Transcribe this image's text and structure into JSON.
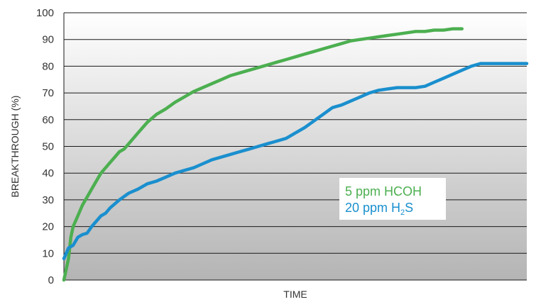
{
  "chart_data": {
    "type": "line",
    "title": "",
    "xlabel": "TIME",
    "ylabel": "BREAKTHROUGH (%)",
    "ylim": [
      0,
      100
    ],
    "xlim": [
      0,
      100
    ],
    "yticks": [
      "0",
      "10",
      "20",
      "30",
      "40",
      "50",
      "60",
      "70",
      "80",
      "90",
      "100"
    ],
    "grid": "horizontal",
    "legend_position": "lower-right",
    "series": [
      {
        "name": "5 ppm HCOH",
        "color": "#4caf50",
        "x": [
          0,
          1,
          1.5,
          2,
          3,
          4,
          5,
          6,
          7,
          8,
          9,
          10,
          11,
          12,
          13,
          14,
          15,
          16,
          17,
          18,
          20,
          22,
          24,
          26,
          28,
          30,
          32,
          34,
          36,
          38,
          40,
          42,
          44,
          46,
          48,
          50,
          52,
          54,
          56,
          58,
          60,
          62,
          64,
          66,
          68,
          70,
          72,
          74,
          76,
          78,
          80,
          82,
          84,
          86
        ],
        "values": [
          0,
          8,
          16,
          20,
          24,
          28,
          31,
          34,
          37,
          40,
          42,
          44,
          46,
          48,
          49,
          51,
          53,
          55,
          57,
          59,
          62,
          64,
          66.5,
          68.5,
          70.5,
          72,
          73.5,
          75,
          76.5,
          77.5,
          78.5,
          79.5,
          80.5,
          81.5,
          82.5,
          83.5,
          84.5,
          85.5,
          86.5,
          87.5,
          88.5,
          89.5,
          90,
          90.5,
          91,
          91.5,
          92,
          92.5,
          93,
          93,
          93.5,
          93.5,
          94,
          94
        ]
      },
      {
        "name": "20 ppm H₂S",
        "color": "#1a8fce",
        "x": [
          0,
          1,
          2,
          3,
          4,
          5,
          6,
          7,
          8,
          9,
          10,
          12,
          14,
          16,
          18,
          20,
          22,
          24,
          26,
          28,
          30,
          32,
          34,
          36,
          38,
          40,
          42,
          44,
          46,
          48,
          50,
          52,
          54,
          56,
          58,
          60,
          62,
          64,
          66,
          68,
          70,
          72,
          74,
          76,
          78,
          80,
          82,
          84,
          86,
          88,
          90,
          92,
          94,
          96,
          98,
          100
        ],
        "values": [
          8,
          12,
          13,
          16,
          17,
          17.5,
          20,
          22,
          24,
          25,
          27,
          30,
          32.5,
          34,
          36,
          37,
          38.5,
          40,
          41,
          42,
          43.5,
          45,
          46,
          47,
          48,
          49,
          50,
          51,
          52,
          53,
          55,
          57,
          59.5,
          62,
          64.5,
          65.5,
          67,
          68.5,
          70,
          71,
          71.5,
          72,
          72,
          72,
          72.5,
          74,
          75.5,
          77,
          78.5,
          80,
          81,
          81,
          81,
          81,
          81,
          81
        ]
      }
    ],
    "legend_entries": [
      {
        "prefix": "5 ppm HCOH",
        "sub": "",
        "suffix": "",
        "color": "#4caf50"
      },
      {
        "prefix": "20 ppm H",
        "sub": "2",
        "suffix": "S",
        "color": "#1a8fce"
      }
    ]
  }
}
